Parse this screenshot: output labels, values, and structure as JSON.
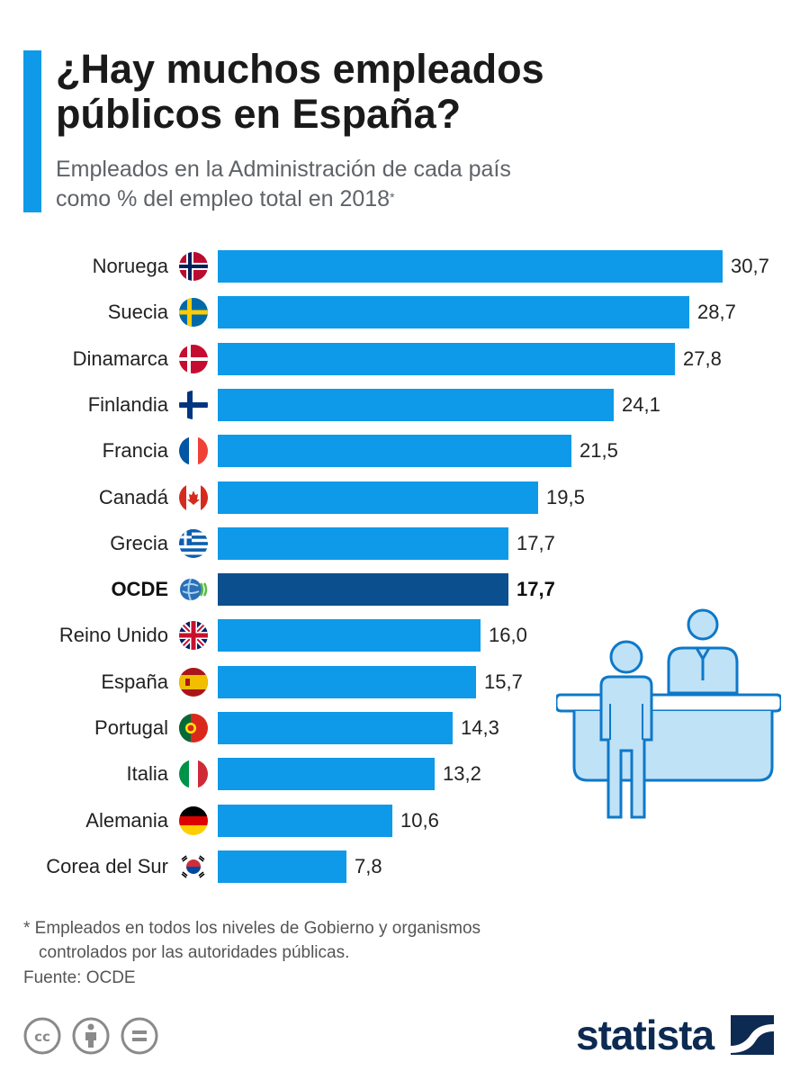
{
  "header": {
    "title_line1": "¿Hay muchos empleados",
    "title_line2": "públicos en España?",
    "subtitle_line1": "Empleados en la Administración de cada país",
    "subtitle_line2": "como % del empleo total en 2018",
    "subtitle_mark": "*"
  },
  "chart_data": {
    "type": "bar",
    "orientation": "horizontal",
    "title": "¿Hay muchos empleados públicos en España?",
    "subtitle": "Empleados en la Administración de cada país como % del empleo total en 2018*",
    "categories": [
      "Noruega",
      "Suecia",
      "Dinamarca",
      "Finlandia",
      "Francia",
      "Canadá",
      "Grecia",
      "OCDE",
      "Reino Unido",
      "España",
      "Portugal",
      "Italia",
      "Alemania",
      "Corea del Sur"
    ],
    "values": [
      30.7,
      28.7,
      27.8,
      24.1,
      21.5,
      19.5,
      17.7,
      17.7,
      16.0,
      15.7,
      14.3,
      13.2,
      10.6,
      7.8
    ],
    "value_labels": [
      "30,7",
      "28,7",
      "27,8",
      "24,1",
      "21,5",
      "19,5",
      "17,7",
      "17,7",
      "16,0",
      "15,7",
      "14,3",
      "13,2",
      "10,6",
      "7,8"
    ],
    "flags": [
      "flag-norway-icon",
      "flag-sweden-icon",
      "flag-denmark-icon",
      "flag-finland-icon",
      "flag-france-icon",
      "flag-canada-icon",
      "flag-greece-icon",
      "oecd-logo-icon",
      "flag-uk-icon",
      "flag-spain-icon",
      "flag-portugal-icon",
      "flag-italy-icon",
      "flag-germany-icon",
      "flag-south-korea-icon"
    ],
    "highlight": "OCDE",
    "xlim": [
      0,
      30.7
    ],
    "colors": {
      "bar": "#0e9ae8",
      "highlight": "#0b4f8f"
    }
  },
  "footer": {
    "footnote_line1": "* Empleados en todos los niveles de Gobierno y organismos",
    "footnote_line2": "controlados por las autoridades públicas.",
    "source": "Fuente: OCDE",
    "brand": "statista",
    "license_icons": [
      "cc-icon",
      "attribution-icon",
      "no-derivatives-icon"
    ]
  }
}
